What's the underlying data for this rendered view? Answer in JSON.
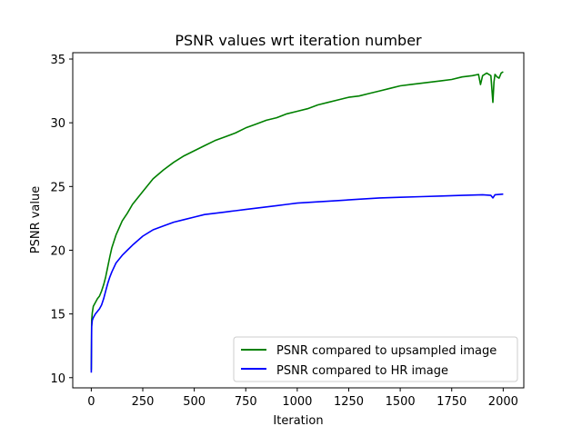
{
  "chart_data": {
    "type": "line",
    "title": "PSNR values wrt iteration number",
    "xlabel": "Iteration",
    "ylabel": "PSNR value",
    "xlim": [
      -90,
      2100
    ],
    "ylim": [
      9.2,
      35.5
    ],
    "xticks": [
      0,
      250,
      500,
      750,
      1000,
      1250,
      1500,
      1750,
      2000
    ],
    "yticks": [
      10,
      15,
      20,
      25,
      30,
      35
    ],
    "grid": false,
    "legend_position": "lower-right",
    "series": [
      {
        "name": "PSNR compared to upsampled image",
        "color": "#008000",
        "x": [
          0,
          2,
          5,
          10,
          20,
          30,
          40,
          50,
          60,
          70,
          80,
          90,
          100,
          120,
          150,
          175,
          200,
          250,
          300,
          350,
          400,
          450,
          500,
          550,
          600,
          650,
          700,
          750,
          800,
          850,
          900,
          950,
          1000,
          1050,
          1100,
          1150,
          1200,
          1250,
          1300,
          1350,
          1400,
          1450,
          1500,
          1550,
          1600,
          1650,
          1700,
          1750,
          1800,
          1850,
          1880,
          1890,
          1900,
          1920,
          1940,
          1950,
          1955,
          1960,
          1970,
          1980,
          1990,
          2000
        ],
        "values": [
          10.6,
          14.5,
          15.1,
          15.6,
          15.9,
          16.2,
          16.4,
          16.8,
          17.3,
          17.9,
          18.7,
          19.5,
          20.2,
          21.2,
          22.3,
          22.9,
          23.6,
          24.6,
          25.6,
          26.3,
          26.9,
          27.4,
          27.8,
          28.2,
          28.6,
          28.9,
          29.2,
          29.6,
          29.9,
          30.2,
          30.4,
          30.7,
          30.9,
          31.1,
          31.4,
          31.6,
          31.8,
          32.0,
          32.1,
          32.3,
          32.5,
          32.7,
          32.9,
          33.0,
          33.1,
          33.2,
          33.3,
          33.4,
          33.6,
          33.7,
          33.8,
          33.0,
          33.7,
          33.9,
          33.7,
          31.6,
          33.2,
          33.8,
          33.6,
          33.5,
          33.9,
          34.0
        ]
      },
      {
        "name": "PSNR compared to HR image",
        "color": "#0000ff",
        "x": [
          0,
          2,
          5,
          10,
          20,
          30,
          40,
          50,
          60,
          70,
          80,
          90,
          100,
          120,
          150,
          175,
          200,
          250,
          300,
          350,
          400,
          450,
          500,
          550,
          600,
          650,
          700,
          750,
          800,
          850,
          900,
          950,
          1000,
          1100,
          1200,
          1300,
          1400,
          1500,
          1600,
          1700,
          1800,
          1900,
          1940,
          1950,
          1960,
          2000
        ],
        "values": [
          10.4,
          14.0,
          14.5,
          14.7,
          15.0,
          15.2,
          15.4,
          15.7,
          16.2,
          16.8,
          17.4,
          17.9,
          18.3,
          19.0,
          19.6,
          20.0,
          20.4,
          21.1,
          21.6,
          21.9,
          22.2,
          22.4,
          22.6,
          22.8,
          22.9,
          23.0,
          23.1,
          23.2,
          23.3,
          23.4,
          23.5,
          23.6,
          23.7,
          23.8,
          23.9,
          24.0,
          24.1,
          24.15,
          24.2,
          24.25,
          24.3,
          24.35,
          24.3,
          24.1,
          24.35,
          24.4
        ]
      }
    ]
  }
}
